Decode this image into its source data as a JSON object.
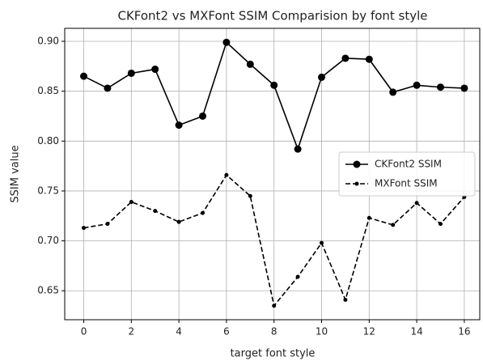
{
  "chart_data": {
    "type": "line",
    "title": "CKFont2 vs MXFont SSIM Comparision by font style",
    "x_label": "target font style",
    "y_label": "SSIM value",
    "x": [
      0,
      1,
      2,
      3,
      4,
      5,
      6,
      7,
      8,
      9,
      10,
      11,
      12,
      13,
      14,
      15,
      16
    ],
    "series": [
      {
        "name": "CKFont2 SSIM",
        "color": "#000000",
        "dash": "solid",
        "marker": "circle",
        "values": [
          0.865,
          0.853,
          0.868,
          0.872,
          0.816,
          0.825,
          0.899,
          0.877,
          0.856,
          0.792,
          0.864,
          0.883,
          0.882,
          0.849,
          0.856,
          0.854,
          0.853
        ]
      },
      {
        "name": "MXFont SSIM",
        "color": "#000000",
        "dash": "dashed",
        "marker": "dot",
        "values": [
          0.713,
          0.717,
          0.739,
          0.73,
          0.719,
          0.728,
          0.766,
          0.745,
          0.635,
          0.664,
          0.698,
          0.641,
          0.723,
          0.716,
          0.738,
          0.717,
          0.744
        ]
      }
    ],
    "xlim": [
      -0.8,
      16.65
    ],
    "ylim": [
      0.621,
      0.913
    ],
    "xticks": [
      0,
      2,
      4,
      6,
      8,
      10,
      12,
      14,
      16
    ],
    "yticks": [
      {
        "value": 0.65,
        "label": "0.65"
      },
      {
        "value": 0.7,
        "label": "0.70"
      },
      {
        "value": 0.75,
        "label": "0.75"
      },
      {
        "value": 0.8,
        "label": "0.80"
      },
      {
        "value": 0.85,
        "label": "0.85"
      },
      {
        "value": 0.9,
        "label": "0.90"
      }
    ],
    "grid": true,
    "legend": "center right"
  }
}
